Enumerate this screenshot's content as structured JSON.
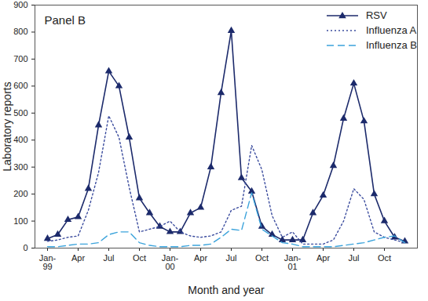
{
  "chart_data": {
    "type": "line",
    "title": "Panel B",
    "x_label": "Month and year",
    "y_label": "Laboratory reports",
    "categories": [
      "Jan-99",
      null,
      null,
      "Apr",
      null,
      null,
      "Jul",
      null,
      null,
      "Oct",
      null,
      null,
      "Jan-00",
      null,
      null,
      "Apr",
      null,
      null,
      "Jul",
      null,
      null,
      "Oct",
      null,
      null,
      "Jan-01",
      null,
      null,
      "Apr",
      null,
      null,
      "Jul",
      null,
      null,
      "Oct",
      null,
      null
    ],
    "series": [
      {
        "name": "RSV",
        "color": "#1c2a6b",
        "marker": "triangle",
        "line_style": "solid",
        "values": [
          35,
          50,
          105,
          115,
          220,
          455,
          655,
          600,
          410,
          185,
          130,
          80,
          60,
          60,
          130,
          150,
          300,
          575,
          805,
          260,
          210,
          80,
          50,
          30,
          30,
          30,
          130,
          195,
          305,
          480,
          610,
          470,
          200,
          100,
          40,
          25
        ]
      },
      {
        "name": "Influenza A",
        "color": "#3b4c9e",
        "marker": "none",
        "line_style": "dotted",
        "values": [
          25,
          30,
          40,
          45,
          140,
          280,
          490,
          410,
          225,
          60,
          70,
          80,
          100,
          60,
          45,
          40,
          45,
          60,
          140,
          155,
          380,
          290,
          120,
          40,
          60,
          15,
          15,
          15,
          30,
          100,
          220,
          180,
          60,
          40,
          30,
          20
        ]
      },
      {
        "name": "Influenza B",
        "color": "#3ba3db",
        "marker": "none",
        "line_style": "dashed",
        "values": [
          5,
          5,
          10,
          15,
          15,
          20,
          50,
          60,
          60,
          20,
          10,
          5,
          5,
          5,
          10,
          10,
          15,
          40,
          70,
          65,
          205,
          70,
          45,
          20,
          15,
          5,
          5,
          5,
          5,
          10,
          15,
          20,
          30,
          40,
          45,
          20
        ]
      }
    ],
    "ylim": [
      0,
      900
    ],
    "yticks": [
      0,
      100,
      200,
      300,
      400,
      500,
      600,
      700,
      800,
      900
    ],
    "grid": false,
    "legend": "top-right"
  }
}
